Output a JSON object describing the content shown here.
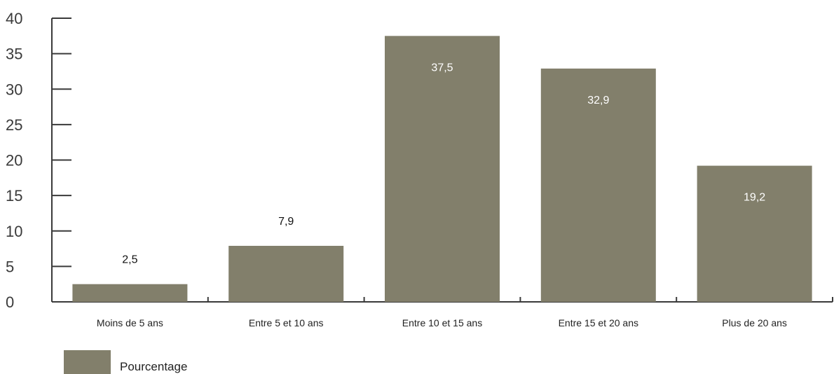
{
  "chart_data": {
    "type": "bar",
    "title": "",
    "xlabel": "",
    "ylabel": "",
    "categories": [
      "Moins de 5 ans",
      "Entre 5 et 10 ans",
      "Entre 10 et 15 ans",
      "Entre 15 et 20 ans",
      "Plus de 20 ans"
    ],
    "series": [
      {
        "name": "Pourcentage",
        "values": [
          2.5,
          7.9,
          37.5,
          32.9,
          19.2
        ],
        "value_labels": [
          "2,5",
          "7,9",
          "37,5",
          "32,9",
          "19,2"
        ]
      }
    ],
    "ylim": [
      0,
      40
    ],
    "yticks": [
      0,
      5,
      10,
      15,
      20,
      25,
      30,
      35,
      40
    ],
    "ytick_labels": [
      "0",
      "5",
      "10",
      "15",
      "20",
      "25",
      "30",
      "35",
      "40"
    ],
    "grid": false,
    "legend": {
      "placement": "bottom-left",
      "entries": [
        "Pourcentage"
      ]
    },
    "colors": {
      "bar": "#827f6b",
      "axis": "#3a3a3a",
      "label_inside": "#ffffff",
      "label_outside": "#111111"
    }
  }
}
